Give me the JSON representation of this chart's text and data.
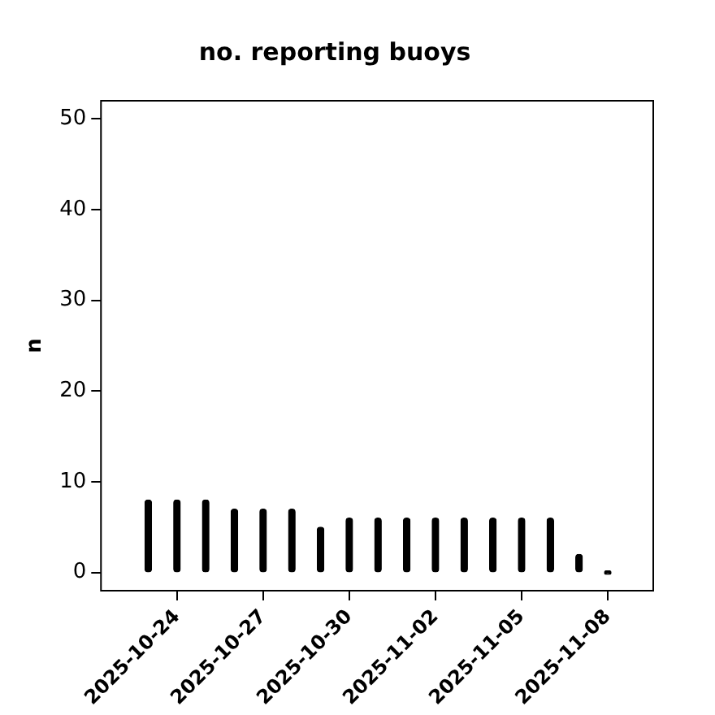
{
  "chart_data": {
    "type": "bar",
    "title": "no. reporting buoys",
    "ylabel": "n",
    "x": [
      "2025-10-23",
      "2025-10-24",
      "2025-10-25",
      "2025-10-26",
      "2025-10-27",
      "2025-10-28",
      "2025-10-29",
      "2025-10-30",
      "2025-10-31",
      "2025-11-01",
      "2025-11-02",
      "2025-11-03",
      "2025-11-04",
      "2025-11-05",
      "2025-11-06",
      "2025-11-07",
      "2025-11-08"
    ],
    "values": [
      8,
      8,
      8,
      7,
      7,
      7,
      5,
      6,
      6,
      6,
      6,
      6,
      6,
      6,
      6,
      2,
      0
    ],
    "color": "#000000",
    "xlim": [
      "2025-10-21T08:30",
      "2025-11-09T14:00"
    ],
    "xticks": [
      "2025-10-24",
      "2025-10-27",
      "2025-10-30",
      "2025-11-02",
      "2025-11-05",
      "2025-11-08"
    ],
    "ylim": [
      -2,
      52
    ],
    "yticks": [
      0,
      10,
      20,
      30,
      40,
      50
    ],
    "grid": false,
    "legend": false
  }
}
